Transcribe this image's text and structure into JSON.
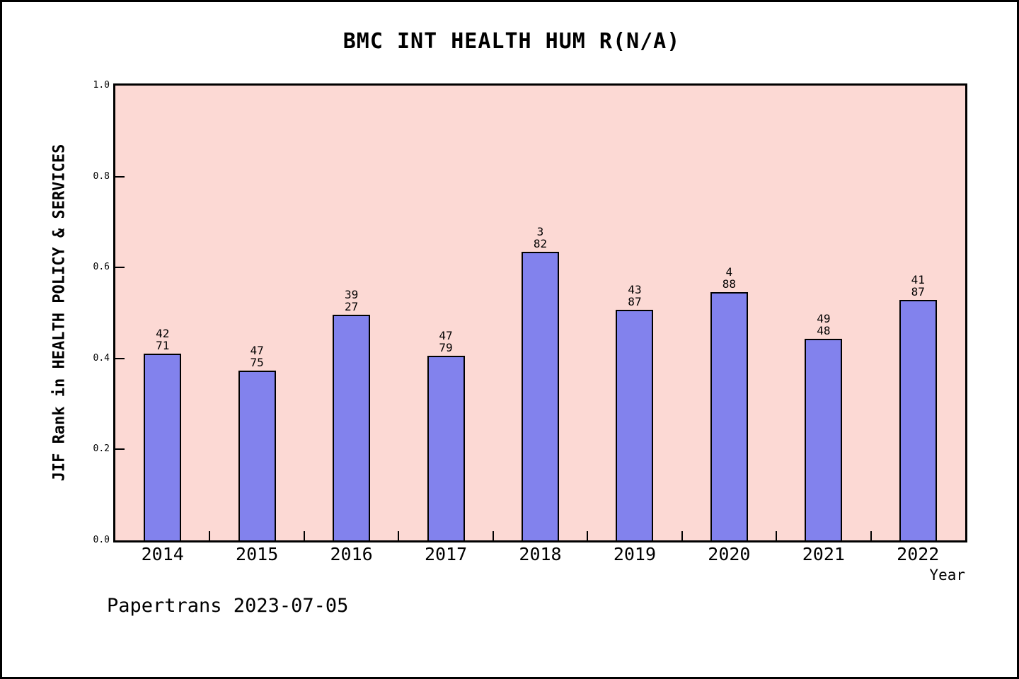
{
  "title": "BMC INT HEALTH HUM R(N/A)",
  "footer": "Papertrans 2023-07-05",
  "colors": {
    "plot_background": "#fcd9d4",
    "bar_fill": "#8282ed",
    "frame": "#000000",
    "page_background": "#ffffff"
  },
  "chart_data": {
    "type": "bar",
    "title": "BMC INT HEALTH HUM R(N/A)",
    "xlabel": "Year",
    "ylabel": "JIF Rank in HEALTH POLICY & SERVICES",
    "categories": [
      "2014",
      "2015",
      "2016",
      "2017",
      "2018",
      "2019",
      "2020",
      "2021",
      "2022"
    ],
    "values": [
      0.41,
      0.374,
      0.496,
      0.406,
      0.635,
      0.507,
      0.546,
      0.444,
      0.528
    ],
    "bar_labels": [
      [
        "42",
        "71"
      ],
      [
        "47",
        "75"
      ],
      [
        "39",
        "27"
      ],
      [
        "47",
        "79"
      ],
      [
        "3",
        "82"
      ],
      [
        "43",
        "87"
      ],
      [
        "4",
        "88"
      ],
      [
        "49",
        "48"
      ],
      [
        "41",
        "87"
      ]
    ],
    "yticks": [
      0.0,
      0.2,
      0.4,
      0.6,
      0.8,
      1.0
    ],
    "ytick_labels": [
      "0.0",
      "0.2",
      "0.4",
      "0.6",
      "0.8",
      "1.0"
    ],
    "ylim": [
      0,
      1
    ],
    "grid": false,
    "legend": false,
    "annotation": "Papertrans 2023-07-05"
  }
}
